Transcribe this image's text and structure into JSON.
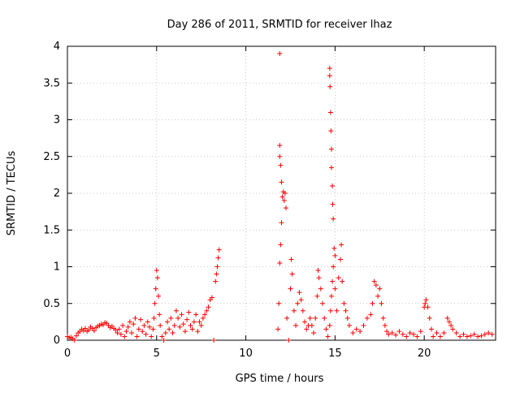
{
  "chart_data": {
    "type": "scatter",
    "title": "Day 286 of 2011, SRMTID for receiver lhaz",
    "xlabel": "GPS time / hours",
    "ylabel": "SRMTID / TECUs",
    "xlim": [
      0,
      24
    ],
    "ylim": [
      0,
      4
    ],
    "grid": true,
    "marker": "+",
    "color": "#ff0000",
    "x_ticks": [
      "0",
      "5",
      "10",
      "15",
      "20"
    ],
    "x_tick_values": [
      0,
      5,
      10,
      15,
      20
    ],
    "y_ticks": [
      "0",
      "0.5",
      "1",
      "1.5",
      "2",
      "2.5",
      "3",
      "3.5",
      "4"
    ],
    "y_tick_values": [
      0,
      0.5,
      1,
      1.5,
      2,
      2.5,
      3,
      3.5,
      4
    ],
    "series": [
      {
        "points": [
          [
            0.0,
            0.05
          ],
          [
            0.1,
            0.03
          ],
          [
            0.2,
            0.04
          ],
          [
            0.3,
            0.02
          ],
          [
            0.4,
            0.0
          ],
          [
            0.5,
            0.06
          ],
          [
            0.6,
            0.1
          ],
          [
            0.7,
            0.12
          ],
          [
            0.8,
            0.15
          ],
          [
            0.9,
            0.13
          ],
          [
            1.0,
            0.16
          ],
          [
            1.1,
            0.12
          ],
          [
            1.2,
            0.14
          ],
          [
            1.3,
            0.18
          ],
          [
            1.4,
            0.16
          ],
          [
            1.5,
            0.13
          ],
          [
            1.6,
            0.17
          ],
          [
            1.7,
            0.19
          ],
          [
            1.8,
            0.2
          ],
          [
            1.9,
            0.22
          ],
          [
            2.0,
            0.21
          ],
          [
            2.1,
            0.24
          ],
          [
            2.2,
            0.23
          ],
          [
            2.3,
            0.2
          ],
          [
            2.4,
            0.17
          ],
          [
            2.5,
            0.19
          ],
          [
            2.6,
            0.16
          ],
          [
            2.7,
            0.14
          ],
          [
            2.8,
            0.1
          ],
          [
            2.9,
            0.15
          ],
          [
            3.0,
            0.08
          ],
          [
            3.1,
            0.2
          ],
          [
            3.2,
            0.05
          ],
          [
            3.3,
            0.12
          ],
          [
            3.4,
            0.18
          ],
          [
            3.5,
            0.25
          ],
          [
            3.6,
            0.1
          ],
          [
            3.7,
            0.22
          ],
          [
            3.8,
            0.3
          ],
          [
            3.9,
            0.05
          ],
          [
            4.0,
            0.15
          ],
          [
            4.1,
            0.28
          ],
          [
            4.2,
            0.12
          ],
          [
            4.3,
            0.2
          ],
          [
            4.4,
            0.08
          ],
          [
            4.5,
            0.25
          ],
          [
            4.6,
            0.18
          ],
          [
            4.7,
            0.05
          ],
          [
            4.8,
            0.15
          ],
          [
            4.85,
            0.3
          ],
          [
            4.9,
            0.5
          ],
          [
            4.95,
            0.7
          ],
          [
            5.0,
            0.95
          ],
          [
            5.05,
            0.85
          ],
          [
            5.1,
            0.6
          ],
          [
            5.15,
            0.35
          ],
          [
            5.2,
            0.2
          ],
          [
            5.3,
            0.05
          ],
          [
            5.4,
            0.0
          ],
          [
            5.5,
            0.1
          ],
          [
            5.6,
            0.25
          ],
          [
            5.7,
            0.15
          ],
          [
            5.8,
            0.3
          ],
          [
            5.9,
            0.1
          ],
          [
            6.0,
            0.2
          ],
          [
            6.1,
            0.4
          ],
          [
            6.2,
            0.3
          ],
          [
            6.3,
            0.18
          ],
          [
            6.4,
            0.35
          ],
          [
            6.5,
            0.22
          ],
          [
            6.6,
            0.12
          ],
          [
            6.7,
            0.28
          ],
          [
            6.8,
            0.38
          ],
          [
            6.9,
            0.2
          ],
          [
            7.0,
            0.15
          ],
          [
            7.1,
            0.25
          ],
          [
            7.2,
            0.35
          ],
          [
            7.3,
            0.12
          ],
          [
            7.4,
            0.25
          ],
          [
            7.5,
            0.2
          ],
          [
            7.6,
            0.3
          ],
          [
            7.7,
            0.35
          ],
          [
            7.8,
            0.4
          ],
          [
            7.9,
            0.45
          ],
          [
            8.0,
            0.55
          ],
          [
            8.1,
            0.58
          ],
          [
            8.2,
            0.0
          ],
          [
            8.3,
            0.8
          ],
          [
            8.35,
            0.9
          ],
          [
            8.4,
            1.0
          ],
          [
            8.45,
            1.12
          ],
          [
            8.5,
            1.23
          ],
          [
            11.8,
            0.15
          ],
          [
            11.85,
            0.5
          ],
          [
            11.9,
            1.05
          ],
          [
            11.95,
            1.3
          ],
          [
            12.0,
            1.6
          ],
          [
            12.05,
            1.95
          ],
          [
            12.1,
            2.02
          ],
          [
            12.15,
            1.9
          ],
          [
            12.2,
            2.0
          ],
          [
            12.25,
            1.8
          ],
          [
            12.3,
            0.3
          ],
          [
            12.4,
            0.0
          ],
          [
            12.5,
            0.7
          ],
          [
            12.55,
            1.1
          ],
          [
            12.6,
            0.9
          ],
          [
            12.7,
            0.4
          ],
          [
            12.8,
            0.2
          ],
          [
            12.9,
            0.5
          ],
          [
            13.0,
            0.65
          ],
          [
            13.1,
            0.55
          ],
          [
            13.2,
            0.4
          ],
          [
            13.3,
            0.25
          ],
          [
            13.4,
            0.15
          ],
          [
            13.5,
            0.2
          ],
          [
            13.6,
            0.3
          ],
          [
            13.7,
            0.2
          ],
          [
            13.8,
            0.1
          ],
          [
            13.9,
            0.3
          ],
          [
            14.0,
            0.6
          ],
          [
            14.05,
            0.95
          ],
          [
            14.1,
            0.85
          ],
          [
            14.2,
            0.7
          ],
          [
            14.3,
            0.5
          ],
          [
            14.4,
            0.3
          ],
          [
            14.5,
            0.15
          ],
          [
            14.6,
            0.05
          ],
          [
            14.7,
            0.2
          ],
          [
            14.75,
            0.4
          ],
          [
            14.8,
            0.6
          ],
          [
            14.85,
            0.8
          ],
          [
            14.9,
            1.0
          ],
          [
            15.0,
            0.7
          ],
          [
            15.1,
            0.4
          ],
          [
            15.2,
            0.85
          ],
          [
            15.3,
            1.1
          ],
          [
            15.35,
            1.3
          ],
          [
            15.4,
            0.8
          ],
          [
            15.5,
            0.5
          ],
          [
            15.6,
            0.4
          ],
          [
            15.7,
            0.3
          ],
          [
            15.8,
            0.2
          ],
          [
            16.0,
            0.1
          ],
          [
            16.2,
            0.15
          ],
          [
            16.4,
            0.12
          ],
          [
            16.6,
            0.2
          ],
          [
            16.8,
            0.3
          ],
          [
            17.0,
            0.35
          ],
          [
            17.1,
            0.5
          ],
          [
            17.2,
            0.8
          ],
          [
            17.3,
            0.75
          ],
          [
            17.4,
            0.6
          ],
          [
            17.5,
            0.7
          ],
          [
            17.6,
            0.5
          ],
          [
            17.7,
            0.3
          ],
          [
            17.8,
            0.2
          ],
          [
            17.9,
            0.12
          ],
          [
            18.0,
            0.08
          ],
          [
            18.2,
            0.1
          ],
          [
            18.4,
            0.07
          ],
          [
            18.6,
            0.12
          ],
          [
            18.8,
            0.08
          ],
          [
            19.0,
            0.05
          ],
          [
            19.2,
            0.1
          ],
          [
            19.4,
            0.08
          ],
          [
            19.6,
            0.05
          ],
          [
            19.8,
            0.12
          ],
          [
            20.0,
            0.45
          ],
          [
            20.05,
            0.5
          ],
          [
            20.1,
            0.55
          ],
          [
            20.2,
            0.45
          ],
          [
            20.3,
            0.3
          ],
          [
            20.4,
            0.15
          ],
          [
            20.5,
            0.05
          ],
          [
            20.7,
            0.1
          ],
          [
            20.9,
            0.05
          ],
          [
            21.1,
            0.1
          ],
          [
            21.3,
            0.3
          ],
          [
            21.4,
            0.25
          ],
          [
            21.5,
            0.2
          ],
          [
            21.6,
            0.15
          ],
          [
            21.8,
            0.1
          ],
          [
            22.0,
            0.05
          ],
          [
            22.2,
            0.08
          ],
          [
            22.4,
            0.05
          ],
          [
            22.6,
            0.06
          ],
          [
            22.8,
            0.08
          ],
          [
            23.0,
            0.05
          ],
          [
            23.2,
            0.06
          ],
          [
            23.4,
            0.08
          ],
          [
            23.6,
            0.1
          ],
          [
            23.8,
            0.08
          ],
          [
            11.9,
            3.9
          ],
          [
            11.9,
            2.65
          ],
          [
            11.9,
            2.5
          ],
          [
            11.95,
            2.38
          ],
          [
            12.0,
            2.15
          ],
          [
            14.7,
            3.7
          ],
          [
            14.7,
            3.6
          ],
          [
            14.72,
            3.45
          ],
          [
            14.75,
            3.1
          ],
          [
            14.77,
            2.85
          ],
          [
            14.8,
            2.6
          ],
          [
            14.8,
            2.35
          ],
          [
            14.85,
            2.1
          ],
          [
            14.87,
            1.85
          ],
          [
            14.9,
            1.65
          ],
          [
            14.95,
            1.25
          ],
          [
            15.0,
            1.15
          ]
        ]
      }
    ]
  }
}
